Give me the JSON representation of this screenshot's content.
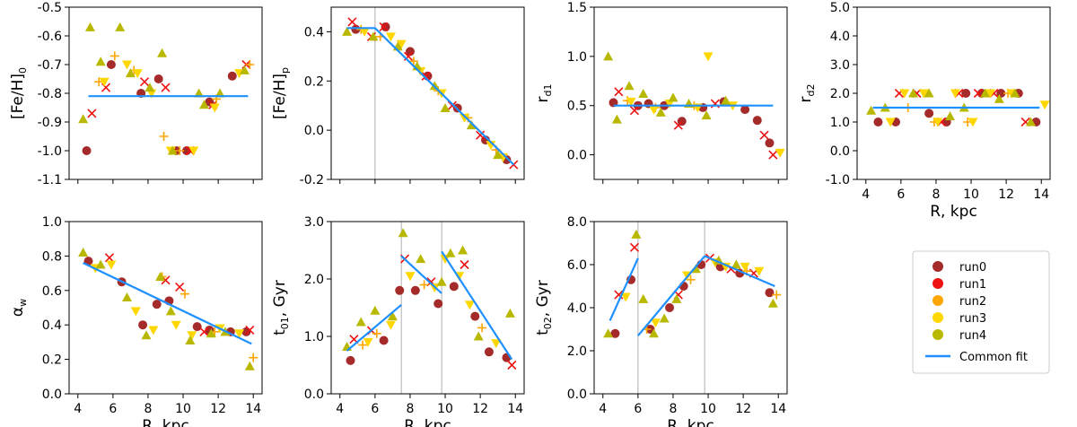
{
  "colors": {
    "run0": "#a52a2a",
    "run1": "#ee1111",
    "run2": "#ffa500",
    "run3": "#ffd700",
    "run4": "#b8b800",
    "fit": "#1e90ff",
    "vline": "#b0b0b0"
  },
  "legend": {
    "entries": [
      "run0",
      "run1",
      "run2",
      "run3",
      "run4",
      "Common fit"
    ]
  },
  "chart_data": [
    {
      "id": "feh0",
      "type": "scatter",
      "ylabel": "[Fe/H]",
      "ylabel_sub": "0",
      "xlabel": "",
      "xlim": [
        3.5,
        14.5
      ],
      "ylim": [
        -1.1,
        -0.5
      ],
      "xticks": [],
      "yticks": [
        "-1.1",
        "-1.0",
        "-0.9",
        "-0.8",
        "-0.7",
        "-0.6",
        "-0.5"
      ],
      "vlines": [],
      "fit": [
        [
          [
            4.6,
            -0.81
          ],
          [
            13.7,
            -0.81
          ]
        ]
      ],
      "series": [
        {
          "name": "run0",
          "x": [
            4.5,
            5.9,
            7.6,
            8.6,
            9.6,
            10.2,
            11.5,
            12.8
          ],
          "y": [
            -1.0,
            -0.7,
            -0.8,
            -0.75,
            -1.0,
            -1.0,
            -0.83,
            -0.74
          ]
        },
        {
          "name": "run1",
          "x": [
            4.8,
            5.6,
            7.8,
            9.0,
            10.4,
            11.7,
            13.6
          ],
          "y": [
            -0.87,
            -0.78,
            -0.76,
            -0.78,
            -1.0,
            -0.84,
            -0.7
          ]
        },
        {
          "name": "run2",
          "x": [
            5.2,
            6.1,
            7.2,
            8.9,
            9.8,
            11.9,
            13.8
          ],
          "y": [
            -0.76,
            -0.67,
            -0.72,
            -0.95,
            -1.0,
            -0.82,
            -0.7
          ]
        },
        {
          "name": "run3",
          "x": [
            5.5,
            6.8,
            7.4,
            8.2,
            9.3,
            10.6,
            11.8,
            13.2
          ],
          "y": [
            -0.76,
            -0.7,
            -0.73,
            -0.8,
            -1.0,
            -1.0,
            -0.85,
            -0.73
          ]
        },
        {
          "name": "run4",
          "x": [
            4.3,
            4.7,
            5.3,
            6.4,
            7.0,
            8.1,
            8.8,
            9.4,
            10.9,
            11.2,
            12.1,
            13.5
          ],
          "y": [
            -0.89,
            -0.57,
            -0.69,
            -0.57,
            -0.73,
            -0.78,
            -0.66,
            -1.0,
            -0.8,
            -0.84,
            -0.8,
            -0.72
          ]
        }
      ]
    },
    {
      "id": "fehp",
      "type": "scatter",
      "ylabel": "[Fe/H]",
      "ylabel_sub": "p",
      "xlabel": "",
      "xlim": [
        3.5,
        14.5
      ],
      "ylim": [
        -0.2,
        0.5
      ],
      "xticks": [],
      "yticks": [
        "-0.2",
        "0.0",
        "0.2",
        "0.4"
      ],
      "vlines": [
        6.0
      ],
      "fit": [
        [
          [
            4.4,
            0.415
          ],
          [
            6.0,
            0.415
          ],
          [
            13.9,
            -0.14
          ]
        ]
      ],
      "series": [
        {
          "name": "run0",
          "x": [
            4.9,
            6.6,
            8.0,
            9.0,
            10.7,
            12.3,
            13.5
          ],
          "y": [
            0.41,
            0.42,
            0.32,
            0.22,
            0.09,
            -0.04,
            -0.12
          ]
        },
        {
          "name": "run1",
          "x": [
            4.7,
            5.8,
            6.5,
            7.9,
            8.9,
            10.4,
            12.0,
            13.9
          ],
          "y": [
            0.44,
            0.38,
            0.42,
            0.3,
            0.22,
            0.1,
            -0.02,
            -0.14
          ]
        },
        {
          "name": "run2",
          "x": [
            5.2,
            6.3,
            8.2,
            9.6,
            11.3,
            12.9
          ],
          "y": [
            0.41,
            0.38,
            0.28,
            0.16,
            0.05,
            -0.08
          ]
        },
        {
          "name": "run3",
          "x": [
            5.4,
            6.9,
            7.5,
            8.6,
            9.8,
            11.1,
            12.6,
            13.3
          ],
          "y": [
            0.4,
            0.38,
            0.35,
            0.24,
            0.15,
            0.05,
            -0.06,
            -0.11
          ]
        },
        {
          "name": "run4",
          "x": [
            4.4,
            5.9,
            7.3,
            8.4,
            9.4,
            10.0,
            11.5,
            13.0
          ],
          "y": [
            0.4,
            0.38,
            0.34,
            0.26,
            0.18,
            0.09,
            0.02,
            -0.1
          ]
        }
      ]
    },
    {
      "id": "rd1",
      "type": "scatter",
      "ylabel": "r",
      "ylabel_sub": "d1",
      "xlabel": "",
      "xlim": [
        3.5,
        14.5
      ],
      "ylim": [
        -0.25,
        1.5
      ],
      "xticks": [],
      "yticks": [
        "0.0",
        "0.5",
        "1.0",
        "1.5"
      ],
      "vlines": [],
      "fit": [
        [
          [
            4.6,
            0.5
          ],
          [
            13.7,
            0.5
          ]
        ]
      ],
      "series": [
        {
          "name": "run0",
          "x": [
            4.6,
            6.0,
            6.6,
            7.5,
            8.5,
            9.7,
            10.9,
            12.1,
            12.8,
            13.5
          ],
          "y": [
            0.53,
            0.5,
            0.52,
            0.5,
            0.34,
            0.48,
            0.54,
            0.46,
            0.35,
            0.12
          ]
        },
        {
          "name": "run1",
          "x": [
            4.9,
            5.8,
            8.3,
            10.4,
            13.2,
            13.7
          ],
          "y": [
            0.64,
            0.45,
            0.3,
            0.52,
            0.2,
            0.0
          ]
        },
        {
          "name": "run2",
          "x": [
            5.4,
            7.0,
            9.2
          ],
          "y": [
            0.55,
            0.48,
            0.5
          ]
        },
        {
          "name": "run3",
          "x": [
            5.6,
            6.9,
            7.8,
            9.4,
            10.0,
            11.4,
            14.1
          ],
          "y": [
            0.54,
            0.46,
            0.52,
            0.48,
            1.0,
            0.5,
            0.02
          ]
        },
        {
          "name": "run4",
          "x": [
            4.3,
            4.8,
            5.5,
            6.3,
            7.3,
            8.0,
            8.9,
            9.9,
            11.0
          ],
          "y": [
            1.0,
            0.36,
            0.7,
            0.62,
            0.43,
            0.58,
            0.52,
            0.4,
            0.55
          ]
        }
      ]
    },
    {
      "id": "rd2",
      "type": "scatter",
      "ylabel": "r",
      "ylabel_sub": "d2",
      "xlabel": "R,  kpc",
      "xlim": [
        3.5,
        14.5
      ],
      "ylim": [
        -1.0,
        5.0
      ],
      "xticks": [
        "4",
        "6",
        "8",
        "10",
        "12",
        "14"
      ],
      "yticks": [
        "-1.0",
        "0.0",
        "1.0",
        "2.0",
        "3.0",
        "4.0",
        "5.0"
      ],
      "vlines": [],
      "fit": [
        [
          [
            4.4,
            1.5
          ],
          [
            13.9,
            1.5
          ]
        ]
      ],
      "series": [
        {
          "name": "run0",
          "x": [
            4.7,
            5.7,
            7.6,
            8.6,
            9.7,
            10.6,
            11.7,
            12.7,
            13.7
          ],
          "y": [
            1.0,
            1.0,
            1.3,
            1.0,
            2.0,
            2.0,
            2.0,
            2.0,
            1.0
          ]
        },
        {
          "name": "run1",
          "x": [
            5.9,
            6.9,
            8.3,
            9.3,
            10.4,
            11.3,
            13.1
          ],
          "y": [
            2.0,
            2.0,
            1.0,
            2.0,
            2.0,
            2.0,
            1.0
          ]
        },
        {
          "name": "run2",
          "x": [
            6.4,
            7.9,
            9.8,
            12.1
          ],
          "y": [
            1.5,
            1.0,
            1.0,
            2.0
          ]
        },
        {
          "name": "run3",
          "x": [
            5.4,
            6.2,
            7.3,
            8.1,
            9.1,
            10.1,
            11.1,
            12.3,
            14.2
          ],
          "y": [
            1.0,
            2.0,
            2.0,
            1.0,
            2.0,
            1.0,
            2.0,
            2.0,
            1.6
          ]
        },
        {
          "name": "run4",
          "x": [
            4.3,
            5.1,
            6.7,
            7.6,
            8.8,
            9.6,
            10.8,
            11.6,
            12.5,
            13.4
          ],
          "y": [
            1.4,
            1.5,
            2.0,
            2.0,
            1.2,
            1.5,
            2.0,
            1.8,
            2.0,
            1.0
          ]
        }
      ]
    },
    {
      "id": "alphaw",
      "type": "scatter",
      "ylabel": "α",
      "ylabel_sub": "w",
      "xlabel": "R,  kpc",
      "xlim": [
        3.5,
        14.5
      ],
      "ylim": [
        0.0,
        1.0
      ],
      "xticks": [
        "4",
        "6",
        "8",
        "10",
        "12",
        "14"
      ],
      "yticks": [
        "0.0",
        "0.2",
        "0.4",
        "0.6",
        "0.8",
        "1.0"
      ],
      "vlines": [],
      "fit": [
        [
          [
            4.3,
            0.76
          ],
          [
            13.9,
            0.29
          ]
        ]
      ],
      "series": [
        {
          "name": "run0",
          "x": [
            4.6,
            6.5,
            7.7,
            8.5,
            9.2,
            10.8,
            11.5,
            12.7,
            13.6
          ],
          "y": [
            0.77,
            0.65,
            0.4,
            0.52,
            0.54,
            0.39,
            0.37,
            0.36,
            0.36
          ]
        },
        {
          "name": "run1",
          "x": [
            5.8,
            9.0,
            9.8,
            11.2,
            13.8
          ],
          "y": [
            0.79,
            0.66,
            0.62,
            0.36,
            0.37
          ]
        },
        {
          "name": "run2",
          "x": [
            8.8,
            10.1,
            11.8,
            14.0
          ],
          "y": [
            0.68,
            0.58,
            0.36,
            0.21
          ]
        },
        {
          "name": "run3",
          "x": [
            5.0,
            5.9,
            7.3,
            8.3,
            9.6,
            10.5,
            12.1,
            13.2
          ],
          "y": [
            0.73,
            0.75,
            0.48,
            0.37,
            0.4,
            0.34,
            0.38,
            0.35
          ]
        },
        {
          "name": "run4",
          "x": [
            4.3,
            5.3,
            6.8,
            7.9,
            8.7,
            9.3,
            10.4,
            11.6,
            12.4,
            13.8
          ],
          "y": [
            0.82,
            0.75,
            0.56,
            0.34,
            0.68,
            0.48,
            0.31,
            0.35,
            0.36,
            0.16
          ]
        }
      ]
    },
    {
      "id": "t01",
      "type": "scatter",
      "ylabel": "t",
      "ylabel_sub": "01",
      "ylabel_suffix": ",  Gyr",
      "xlabel": "R,  kpc",
      "xlim": [
        3.5,
        14.5
      ],
      "ylim": [
        0.0,
        3.0
      ],
      "xticks": [
        "4",
        "6",
        "8",
        "10",
        "12",
        "14"
      ],
      "yticks": [
        "0.0",
        "1.0",
        "2.0",
        "3.0"
      ],
      "vlines": [
        7.5,
        9.8
      ],
      "fit": [
        [
          [
            4.4,
            0.75
          ],
          [
            7.5,
            1.55
          ]
        ],
        [
          [
            7.5,
            2.4
          ],
          [
            9.8,
            1.75
          ]
        ],
        [
          [
            9.8,
            2.48
          ],
          [
            13.8,
            0.6
          ]
        ]
      ],
      "series": [
        {
          "name": "run0",
          "x": [
            4.6,
            6.5,
            7.4,
            8.3,
            9.6,
            10.5,
            11.7,
            12.5,
            13.5
          ],
          "y": [
            0.58,
            0.93,
            1.8,
            1.8,
            1.57,
            1.87,
            1.35,
            0.73,
            0.63
          ]
        },
        {
          "name": "run1",
          "x": [
            4.8,
            5.8,
            7.7,
            9.2,
            11.1,
            13.8
          ],
          "y": [
            0.95,
            1.1,
            2.35,
            1.95,
            2.25,
            0.5
          ]
        },
        {
          "name": "run2",
          "x": [
            5.3,
            6.1,
            8.8,
            12.1
          ],
          "y": [
            0.85,
            1.05,
            1.9,
            1.15
          ]
        },
        {
          "name": "run3",
          "x": [
            5.6,
            6.9,
            8.0,
            9.4,
            10.0,
            10.8,
            11.4,
            12.9
          ],
          "y": [
            0.9,
            1.2,
            2.05,
            1.85,
            2.35,
            2.05,
            1.55,
            0.88
          ]
        },
        {
          "name": "run4",
          "x": [
            4.4,
            5.2,
            6.0,
            7.0,
            7.6,
            8.6,
            9.8,
            10.3,
            11.0,
            11.9,
            13.7
          ],
          "y": [
            0.82,
            1.25,
            1.45,
            1.35,
            2.8,
            2.35,
            1.95,
            2.45,
            2.5,
            1.0,
            1.4
          ]
        }
      ]
    },
    {
      "id": "t02",
      "type": "scatter",
      "ylabel": "t",
      "ylabel_sub": "02",
      "ylabel_suffix": ",  Gyr",
      "xlabel": "R,  kpc",
      "xlim": [
        3.5,
        14.5
      ],
      "ylim": [
        0.0,
        8.0
      ],
      "xticks": [
        "4",
        "6",
        "8",
        "10",
        "12",
        "14"
      ],
      "yticks": [
        "0.0",
        "2.0",
        "4.0",
        "6.0",
        "8.0"
      ],
      "vlines": [
        6.0,
        9.8
      ],
      "fit": [
        [
          [
            4.4,
            3.4
          ],
          [
            6.0,
            6.3
          ]
        ],
        [
          [
            6.0,
            2.7
          ],
          [
            9.8,
            6.4
          ]
        ],
        [
          [
            9.8,
            6.4
          ],
          [
            13.8,
            5.0
          ]
        ]
      ],
      "series": [
        {
          "name": "run0",
          "x": [
            4.7,
            5.6,
            6.7,
            7.8,
            8.6,
            9.6,
            10.7,
            11.8,
            13.5
          ],
          "y": [
            2.8,
            5.3,
            3.0,
            4.0,
            5.0,
            6.0,
            5.9,
            5.6,
            4.7
          ]
        },
        {
          "name": "run1",
          "x": [
            4.9,
            5.8,
            8.3,
            10.1,
            11.3,
            12.6
          ],
          "y": [
            4.6,
            6.8,
            4.6,
            6.3,
            5.8,
            5.6
          ]
        },
        {
          "name": "run2",
          "x": [
            6.5,
            9.0,
            12.2,
            13.9
          ],
          "y": [
            3.0,
            5.3,
            5.7,
            4.6
          ]
        },
        {
          "name": "run3",
          "x": [
            5.3,
            7.0,
            8.8,
            10.4,
            11.0,
            12.1,
            12.9
          ],
          "y": [
            4.5,
            3.3,
            5.5,
            6.1,
            5.9,
            5.9,
            5.7
          ]
        },
        {
          "name": "run4",
          "x": [
            4.3,
            5.9,
            6.3,
            6.9,
            7.5,
            8.2,
            9.3,
            10.6,
            11.6,
            13.7
          ],
          "y": [
            2.8,
            7.4,
            4.4,
            2.8,
            3.5,
            4.4,
            5.8,
            6.2,
            6.0,
            4.2
          ]
        }
      ]
    }
  ]
}
